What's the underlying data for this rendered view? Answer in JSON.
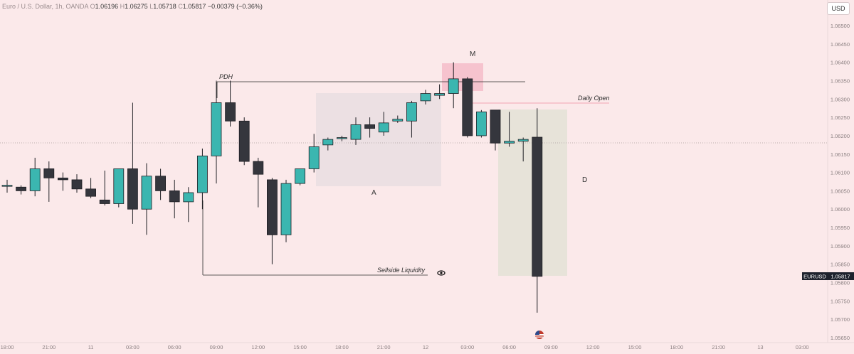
{
  "legend": {
    "symbol": "Euro / U.S. Dollar, 1h, OANDA",
    "o_label": "O",
    "o": "1.06196",
    "h_label": "H",
    "h": "1.06275",
    "l_label": "L",
    "l": "1.05718",
    "c_label": "C",
    "c": "1.05817",
    "change": "−0.00379 (−0.36%)"
  },
  "currency_button": "USD",
  "price_tag": {
    "symbol": "EURUSD",
    "price": "1.05817"
  },
  "annotations": {
    "pdh": "PDH",
    "daily_open": "Daily Open",
    "sellside": "Sellside Liquidity",
    "a": "A",
    "m": "M",
    "d": "D"
  },
  "icons": {
    "eye": "eye-icon",
    "flag": "us-flag-icon"
  },
  "colors": {
    "background": "#fbe9ea",
    "bull": "#3bb6b0",
    "bear": "#35363d",
    "axis_text": "#8a7f80",
    "zone_a": "#ece0e3",
    "zone_m": "#f6c3ce",
    "zone_d": "#e7e3d9",
    "price_tag_bg": "#1e222d"
  },
  "chart_data": {
    "type": "candlestick",
    "ylim": [
      1.0565,
      1.0652
    ],
    "y_ticks": [
      "1.06500",
      "1.06450",
      "1.06400",
      "1.06350",
      "1.06300",
      "1.06250",
      "1.06200",
      "1.06150",
      "1.06100",
      "1.06050",
      "1.06000",
      "1.05950",
      "1.05900",
      "1.05850",
      "1.05800",
      "1.05750",
      "1.05700",
      "1.05650"
    ],
    "x_ticks": [
      "18:00",
      "21:00",
      "11",
      "03:00",
      "06:00",
      "09:00",
      "12:00",
      "15:00",
      "18:00",
      "21:00",
      "12",
      "03:00",
      "06:00",
      "09:00",
      "12:00",
      "15:00",
      "18:00",
      "21:00",
      "13",
      "03:00"
    ],
    "candles": [
      {
        "o": 1.06065,
        "h": 1.0608,
        "l": 1.06045,
        "c": 1.06065
      },
      {
        "o": 1.0606,
        "h": 1.06065,
        "l": 1.0604,
        "c": 1.0605
      },
      {
        "o": 1.0605,
        "h": 1.0614,
        "l": 1.06035,
        "c": 1.0611
      },
      {
        "o": 1.0611,
        "h": 1.0613,
        "l": 1.0602,
        "c": 1.06085
      },
      {
        "o": 1.06085,
        "h": 1.061,
        "l": 1.0605,
        "c": 1.0608
      },
      {
        "o": 1.0608,
        "h": 1.06095,
        "l": 1.06045,
        "c": 1.06055
      },
      {
        "o": 1.06055,
        "h": 1.06085,
        "l": 1.0603,
        "c": 1.06035
      },
      {
        "o": 1.06025,
        "h": 1.06105,
        "l": 1.0601,
        "c": 1.06015
      },
      {
        "o": 1.06015,
        "h": 1.0611,
        "l": 1.06005,
        "c": 1.0611
      },
      {
        "o": 1.0611,
        "h": 1.0629,
        "l": 1.0596,
        "c": 1.06
      },
      {
        "o": 1.06,
        "h": 1.06125,
        "l": 1.0593,
        "c": 1.0609
      },
      {
        "o": 1.0609,
        "h": 1.0611,
        "l": 1.06025,
        "c": 1.0605
      },
      {
        "o": 1.0605,
        "h": 1.0608,
        "l": 1.05975,
        "c": 1.0602
      },
      {
        "o": 1.0602,
        "h": 1.0606,
        "l": 1.05965,
        "c": 1.06045
      },
      {
        "o": 1.06045,
        "h": 1.06165,
        "l": 1.06,
        "c": 1.06145
      },
      {
        "o": 1.06145,
        "h": 1.0635,
        "l": 1.0607,
        "c": 1.0629
      },
      {
        "o": 1.0629,
        "h": 1.0635,
        "l": 1.06225,
        "c": 1.0624
      },
      {
        "o": 1.0624,
        "h": 1.0625,
        "l": 1.0612,
        "c": 1.0613
      },
      {
        "o": 1.0613,
        "h": 1.0614,
        "l": 1.06005,
        "c": 1.06095
      },
      {
        "o": 1.0608,
        "h": 1.06085,
        "l": 1.0585,
        "c": 1.0593
      },
      {
        "o": 1.0593,
        "h": 1.0608,
        "l": 1.0591,
        "c": 1.0607
      },
      {
        "o": 1.0607,
        "h": 1.0611,
        "l": 1.06065,
        "c": 1.0611
      },
      {
        "o": 1.0611,
        "h": 1.06205,
        "l": 1.061,
        "c": 1.0617
      },
      {
        "o": 1.06175,
        "h": 1.06195,
        "l": 1.0616,
        "c": 1.0619
      },
      {
        "o": 1.06195,
        "h": 1.062,
        "l": 1.06185,
        "c": 1.06195
      },
      {
        "o": 1.0619,
        "h": 1.0625,
        "l": 1.06175,
        "c": 1.0623
      },
      {
        "o": 1.0623,
        "h": 1.0625,
        "l": 1.06195,
        "c": 1.0622
      },
      {
        "o": 1.0621,
        "h": 1.06265,
        "l": 1.062,
        "c": 1.06235
      },
      {
        "o": 1.0624,
        "h": 1.06255,
        "l": 1.06235,
        "c": 1.06245
      },
      {
        "o": 1.0624,
        "h": 1.06295,
        "l": 1.06195,
        "c": 1.0629
      },
      {
        "o": 1.06295,
        "h": 1.06325,
        "l": 1.06285,
        "c": 1.06315
      },
      {
        "o": 1.0631,
        "h": 1.0634,
        "l": 1.063,
        "c": 1.06315
      },
      {
        "o": 1.06315,
        "h": 1.064,
        "l": 1.06275,
        "c": 1.06355
      },
      {
        "o": 1.06355,
        "h": 1.0636,
        "l": 1.06195,
        "c": 1.062
      },
      {
        "o": 1.062,
        "h": 1.0627,
        "l": 1.06195,
        "c": 1.06265
      },
      {
        "o": 1.0627,
        "h": 1.0627,
        "l": 1.0616,
        "c": 1.0618
      },
      {
        "o": 1.0618,
        "h": 1.06265,
        "l": 1.0617,
        "c": 1.06185
      },
      {
        "o": 1.06185,
        "h": 1.06195,
        "l": 1.0613,
        "c": 1.0619
      },
      {
        "o": 1.06196,
        "h": 1.06275,
        "l": 1.05718,
        "c": 1.05817
      }
    ]
  }
}
